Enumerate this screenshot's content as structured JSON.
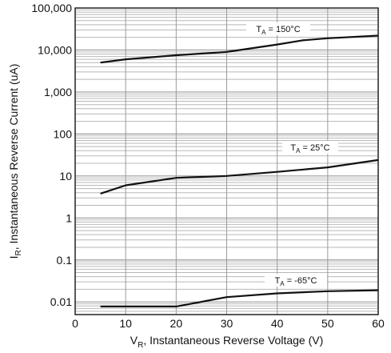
{
  "chart_data": {
    "type": "line",
    "title": "",
    "xlabel": "V_R, Instantaneous Reverse Voltage (V)",
    "xlabel_sub": "R",
    "xlabel_main_prefix": "V",
    "xlabel_main_suffix": ", Instantaneous Reverse Voltage (V)",
    "ylabel": "I_R, Instantaneous Reverse Current (uA)",
    "ylabel_main_prefix": "I",
    "ylabel_sub": "R",
    "ylabel_main_suffix": ", Instantaneous Reverse Current (uA)",
    "xlim": [
      0,
      60
    ],
    "ylim": [
      0.005,
      100000
    ],
    "y_scale": "log",
    "grid": true,
    "x_ticks": [
      "0",
      "10",
      "20",
      "30",
      "40",
      "50",
      "60"
    ],
    "y_ticks": [
      {
        "value": 0.01,
        "label": "0.01"
      },
      {
        "value": 0.1,
        "label": "0.1"
      },
      {
        "value": 1,
        "label": "1"
      },
      {
        "value": 10,
        "label": "10"
      },
      {
        "value": 100,
        "label": "100"
      },
      {
        "value": 1000,
        "label": "1,000"
      },
      {
        "value": 10000,
        "label": "10,000"
      },
      {
        "value": 100000,
        "label": "100,000"
      }
    ],
    "series": [
      {
        "label_main": "T",
        "label_sub": "A",
        "label_value": " = 150°C",
        "x": [
          5,
          10,
          20,
          30,
          40,
          45,
          50,
          60
        ],
        "y": [
          5000,
          6000,
          7500,
          9000,
          13500,
          17000,
          19000,
          22000
        ]
      },
      {
        "label_main": "T",
        "label_sub": "A",
        "label_value": " = 25°C",
        "x": [
          5,
          10,
          20,
          30,
          40,
          50,
          60
        ],
        "y": [
          3.8,
          6,
          9,
          10,
          12.5,
          16,
          24
        ]
      },
      {
        "label_main": "T",
        "label_sub": "A",
        "label_value": " = -65°C",
        "x": [
          5,
          10,
          20,
          30,
          40,
          50,
          60
        ],
        "y": [
          0.0078,
          0.0078,
          0.0078,
          0.013,
          0.016,
          0.018,
          0.019
        ]
      }
    ]
  }
}
